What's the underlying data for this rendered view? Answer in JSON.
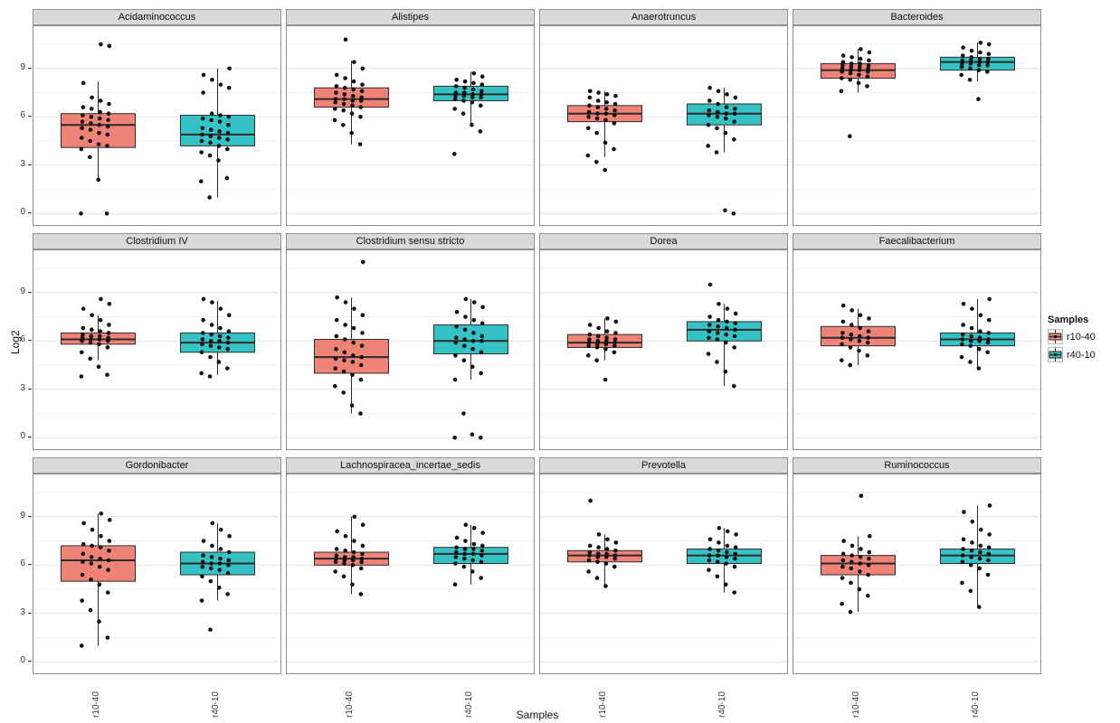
{
  "chart_data": {
    "type": "boxplot",
    "title": "",
    "ylabel": "Log2",
    "xlabel": "Samples",
    "y_ticks": [
      0,
      3,
      6,
      9
    ],
    "y_minor_ticks": [
      1.5,
      4.5,
      7.5,
      10.5
    ],
    "ylim": [
      -0.6,
      11.4
    ],
    "x_categories": [
      "r10-40",
      "r40-10"
    ],
    "legend": {
      "title": "Samples",
      "entries": [
        {
          "label": "r10-40",
          "color": "#F08377"
        },
        {
          "label": "r40-10",
          "color": "#35C2C5"
        }
      ]
    },
    "facets": [
      {
        "title": "Acidaminococcus",
        "groups": [
          {
            "label": "r10-40",
            "q1": 4.1,
            "median": 5.5,
            "q3": 6.2,
            "whisker_low": 2.0,
            "whisker_high": 8.2,
            "points": [
              0,
              0,
              2.1,
              3.5,
              4.0,
              4.2,
              4.3,
              4.5,
              4.7,
              4.9,
              5.0,
              5.2,
              5.3,
              5.4,
              5.5,
              5.6,
              5.7,
              5.8,
              5.9,
              6.0,
              6.1,
              6.2,
              6.3,
              6.5,
              6.6,
              6.8,
              7.0,
              7.2,
              8.1,
              10.4,
              10.5
            ]
          },
          {
            "label": "r40-10",
            "q1": 4.2,
            "median": 4.9,
            "q3": 6.1,
            "whisker_low": 1.0,
            "whisker_high": 9.0,
            "points": [
              1.0,
              2.0,
              2.2,
              3.3,
              3.6,
              3.8,
              4.0,
              4.2,
              4.4,
              4.5,
              4.6,
              4.7,
              4.8,
              4.9,
              5.0,
              5.1,
              5.2,
              5.3,
              5.5,
              5.7,
              5.8,
              5.9,
              6.0,
              6.1,
              6.2,
              7.5,
              7.8,
              8.0,
              8.3,
              8.6,
              9.0
            ]
          }
        ]
      },
      {
        "title": "Alistipes",
        "groups": [
          {
            "label": "r10-40",
            "q1": 6.6,
            "median": 7.1,
            "q3": 7.8,
            "whisker_low": 4.3,
            "whisker_high": 9.5,
            "points": [
              4.3,
              5.0,
              5.5,
              5.8,
              6.0,
              6.2,
              6.4,
              6.5,
              6.6,
              6.7,
              6.8,
              6.9,
              7.0,
              7.0,
              7.1,
              7.1,
              7.2,
              7.3,
              7.4,
              7.5,
              7.6,
              7.7,
              7.8,
              7.9,
              8.0,
              8.2,
              8.4,
              8.6,
              9.0,
              9.4,
              10.8
            ]
          },
          {
            "label": "r40-10",
            "q1": 7.0,
            "median": 7.4,
            "q3": 7.9,
            "whisker_low": 5.5,
            "whisker_high": 8.8,
            "points": [
              3.7,
              5.1,
              5.5,
              6.2,
              6.5,
              6.7,
              6.9,
              7.0,
              7.1,
              7.2,
              7.2,
              7.3,
              7.3,
              7.4,
              7.4,
              7.5,
              7.5,
              7.6,
              7.7,
              7.8,
              7.9,
              8.0,
              8.1,
              8.2,
              8.3,
              8.5,
              8.7
            ]
          }
        ]
      },
      {
        "title": "Anaerotruncus",
        "groups": [
          {
            "label": "r10-40",
            "q1": 5.7,
            "median": 6.2,
            "q3": 6.7,
            "whisker_low": 3.5,
            "whisker_high": 7.6,
            "points": [
              2.7,
              3.2,
              3.6,
              4.0,
              4.4,
              5.0,
              5.3,
              5.6,
              5.8,
              5.9,
              6.0,
              6.1,
              6.2,
              6.2,
              6.3,
              6.4,
              6.5,
              6.6,
              6.7,
              6.8,
              6.9,
              7.0,
              7.2,
              7.3,
              7.4,
              7.5,
              7.6
            ]
          },
          {
            "label": "r40-10",
            "q1": 5.5,
            "median": 6.2,
            "q3": 6.8,
            "whisker_low": 3.8,
            "whisker_high": 7.8,
            "points": [
              0,
              0.2,
              3.8,
              4.2,
              4.6,
              5.0,
              5.3,
              5.5,
              5.7,
              5.9,
              6.0,
              6.1,
              6.2,
              6.2,
              6.3,
              6.4,
              6.5,
              6.6,
              6.8,
              7.0,
              7.2,
              7.4,
              7.6,
              7.8
            ]
          }
        ]
      },
      {
        "title": "Bacteroides",
        "groups": [
          {
            "label": "r10-40",
            "q1": 8.4,
            "median": 8.9,
            "q3": 9.3,
            "whisker_low": 7.5,
            "whisker_high": 10.2,
            "points": [
              4.8,
              7.6,
              7.9,
              8.1,
              8.3,
              8.4,
              8.5,
              8.6,
              8.7,
              8.8,
              8.8,
              8.9,
              8.9,
              9.0,
              9.0,
              9.1,
              9.1,
              9.2,
              9.2,
              9.3,
              9.3,
              9.4,
              9.5,
              9.6,
              9.7,
              9.8,
              10.0,
              10.2
            ]
          },
          {
            "label": "r40-10",
            "q1": 8.9,
            "median": 9.4,
            "q3": 9.7,
            "whisker_low": 8.2,
            "whisker_high": 10.6,
            "points": [
              7.1,
              8.3,
              8.6,
              8.8,
              8.9,
              9.0,
              9.1,
              9.2,
              9.2,
              9.3,
              9.3,
              9.4,
              9.4,
              9.5,
              9.5,
              9.6,
              9.6,
              9.7,
              9.8,
              9.9,
              10.0,
              10.1,
              10.3,
              10.5,
              10.6
            ]
          }
        ]
      },
      {
        "title": "Clostridium IV",
        "groups": [
          {
            "label": "r10-40",
            "q1": 5.8,
            "median": 6.1,
            "q3": 6.5,
            "whisker_low": 4.8,
            "whisker_high": 7.6,
            "points": [
              3.8,
              3.9,
              4.4,
              4.9,
              5.3,
              5.6,
              5.8,
              5.9,
              6.0,
              6.0,
              6.1,
              6.1,
              6.2,
              6.2,
              6.3,
              6.3,
              6.4,
              6.5,
              6.6,
              6.7,
              6.8,
              7.0,
              7.3,
              7.6,
              8.0,
              8.3,
              8.6
            ]
          },
          {
            "label": "r40-10",
            "q1": 5.3,
            "median": 5.9,
            "q3": 6.5,
            "whisker_low": 3.9,
            "whisker_high": 8.5,
            "points": [
              3.8,
              4.0,
              4.3,
              4.7,
              5.0,
              5.3,
              5.5,
              5.6,
              5.7,
              5.8,
              5.9,
              6.0,
              6.0,
              6.1,
              6.2,
              6.3,
              6.4,
              6.5,
              6.6,
              6.8,
              7.0,
              7.3,
              7.6,
              8.0,
              8.4,
              8.6
            ]
          }
        ]
      },
      {
        "title": "Clostridium sensu stricto",
        "groups": [
          {
            "label": "r10-40",
            "q1": 4.0,
            "median": 5.0,
            "q3": 6.1,
            "whisker_low": 1.5,
            "whisker_high": 8.7,
            "points": [
              1.5,
              2.0,
              2.8,
              3.2,
              3.6,
              3.9,
              4.1,
              4.3,
              4.5,
              4.7,
              4.8,
              4.9,
              5.0,
              5.1,
              5.3,
              5.5,
              5.7,
              5.9,
              6.1,
              6.3,
              6.5,
              6.8,
              7.0,
              7.3,
              7.6,
              8.0,
              8.4,
              8.7,
              10.9
            ]
          },
          {
            "label": "r40-10",
            "q1": 5.2,
            "median": 6.0,
            "q3": 7.0,
            "whisker_low": 3.6,
            "whisker_high": 8.6,
            "points": [
              0,
              0,
              0.2,
              1.5,
              3.6,
              4.0,
              4.4,
              4.8,
              5.1,
              5.3,
              5.5,
              5.7,
              5.9,
              6.0,
              6.0,
              6.1,
              6.2,
              6.3,
              6.5,
              6.7,
              6.9,
              7.1,
              7.3,
              7.5,
              7.8,
              8.1,
              8.4,
              8.6
            ]
          }
        ]
      },
      {
        "title": "Dorea",
        "groups": [
          {
            "label": "r10-40",
            "q1": 5.6,
            "median": 5.9,
            "q3": 6.4,
            "whisker_low": 4.8,
            "whisker_high": 7.4,
            "points": [
              3.6,
              4.8,
              5.1,
              5.3,
              5.5,
              5.6,
              5.7,
              5.7,
              5.8,
              5.8,
              5.9,
              5.9,
              6.0,
              6.0,
              6.1,
              6.1,
              6.2,
              6.3,
              6.4,
              6.5,
              6.6,
              6.8,
              7.0,
              7.2,
              7.4
            ]
          },
          {
            "label": "r40-10",
            "q1": 6.0,
            "median": 6.7,
            "q3": 7.2,
            "whisker_low": 3.2,
            "whisker_high": 8.3,
            "points": [
              3.2,
              4.1,
              4.7,
              5.2,
              5.6,
              5.9,
              6.1,
              6.2,
              6.3,
              6.4,
              6.5,
              6.6,
              6.7,
              6.8,
              6.9,
              7.0,
              7.1,
              7.2,
              7.3,
              7.5,
              7.7,
              8.0,
              8.3,
              9.5
            ]
          }
        ]
      },
      {
        "title": "Faecalibacterium",
        "groups": [
          {
            "label": "r10-40",
            "q1": 5.7,
            "median": 6.2,
            "q3": 6.9,
            "whisker_low": 4.5,
            "whisker_high": 8.0,
            "points": [
              4.5,
              4.8,
              5.1,
              5.4,
              5.6,
              5.8,
              5.9,
              6.0,
              6.1,
              6.2,
              6.2,
              6.3,
              6.4,
              6.5,
              6.6,
              6.8,
              7.0,
              7.2,
              7.4,
              7.6,
              7.9,
              8.2
            ]
          },
          {
            "label": "r40-10",
            "q1": 5.7,
            "median": 6.1,
            "q3": 6.5,
            "whisker_low": 4.3,
            "whisker_high": 8.6,
            "points": [
              4.3,
              4.7,
              5.0,
              5.3,
              5.5,
              5.7,
              5.8,
              5.9,
              6.0,
              6.0,
              6.1,
              6.1,
              6.2,
              6.3,
              6.4,
              6.5,
              6.6,
              6.8,
              7.0,
              7.3,
              7.6,
              8.0,
              8.3,
              8.6
            ]
          }
        ]
      },
      {
        "title": "Gordonibacter",
        "groups": [
          {
            "label": "r10-40",
            "q1": 5.0,
            "median": 6.3,
            "q3": 7.2,
            "whisker_low": 1.0,
            "whisker_high": 9.2,
            "points": [
              1.0,
              1.5,
              2.5,
              3.2,
              3.8,
              4.3,
              4.8,
              5.1,
              5.4,
              5.7,
              5.9,
              6.1,
              6.2,
              6.3,
              6.4,
              6.5,
              6.7,
              6.9,
              7.1,
              7.2,
              7.3,
              7.5,
              7.8,
              8.2,
              8.6,
              8.8,
              9.2
            ]
          },
          {
            "label": "r40-10",
            "q1": 5.4,
            "median": 6.1,
            "q3": 6.8,
            "whisker_low": 3.8,
            "whisker_high": 8.6,
            "points": [
              2.0,
              3.8,
              4.2,
              4.6,
              5.0,
              5.3,
              5.5,
              5.7,
              5.8,
              5.9,
              6.0,
              6.1,
              6.1,
              6.2,
              6.3,
              6.4,
              6.5,
              6.6,
              6.8,
              7.0,
              7.2,
              7.5,
              7.8,
              8.2,
              8.6
            ]
          }
        ]
      },
      {
        "title": "Lachnospiracea_incertae_sedis",
        "groups": [
          {
            "label": "r10-40",
            "q1": 6.0,
            "median": 6.4,
            "q3": 6.8,
            "whisker_low": 4.2,
            "whisker_high": 9.0,
            "points": [
              4.2,
              4.8,
              5.3,
              5.6,
              5.8,
              6.0,
              6.1,
              6.2,
              6.2,
              6.3,
              6.3,
              6.4,
              6.4,
              6.5,
              6.5,
              6.6,
              6.7,
              6.8,
              6.9,
              7.0,
              7.2,
              7.5,
              7.8,
              8.1,
              8.5,
              9.0
            ]
          },
          {
            "label": "r40-10",
            "q1": 6.1,
            "median": 6.7,
            "q3": 7.1,
            "whisker_low": 4.8,
            "whisker_high": 8.5,
            "points": [
              4.8,
              5.2,
              5.6,
              5.9,
              6.1,
              6.2,
              6.3,
              6.4,
              6.5,
              6.6,
              6.7,
              6.7,
              6.8,
              6.9,
              7.0,
              7.0,
              7.1,
              7.2,
              7.3,
              7.5,
              7.7,
              8.0,
              8.3,
              8.5
            ]
          }
        ]
      },
      {
        "title": "Prevotella",
        "groups": [
          {
            "label": "r10-40",
            "q1": 6.2,
            "median": 6.6,
            "q3": 6.9,
            "whisker_low": 4.7,
            "whisker_high": 7.9,
            "points": [
              4.7,
              5.2,
              5.6,
              5.9,
              6.1,
              6.2,
              6.3,
              6.4,
              6.5,
              6.5,
              6.6,
              6.6,
              6.7,
              6.7,
              6.8,
              6.9,
              7.0,
              7.1,
              7.2,
              7.4,
              7.6,
              7.9,
              10.0
            ]
          },
          {
            "label": "r40-10",
            "q1": 6.1,
            "median": 6.6,
            "q3": 7.0,
            "whisker_low": 4.3,
            "whisker_high": 8.3,
            "points": [
              4.3,
              4.8,
              5.3,
              5.7,
              5.9,
              6.1,
              6.2,
              6.3,
              6.4,
              6.5,
              6.6,
              6.6,
              6.7,
              6.8,
              6.9,
              7.0,
              7.1,
              7.2,
              7.4,
              7.6,
              7.9,
              8.1,
              8.3
            ]
          }
        ]
      },
      {
        "title": "Ruminococcus",
        "groups": [
          {
            "label": "r10-40",
            "q1": 5.4,
            "median": 6.1,
            "q3": 6.6,
            "whisker_low": 3.1,
            "whisker_high": 7.8,
            "points": [
              3.1,
              3.6,
              4.1,
              4.5,
              4.9,
              5.2,
              5.4,
              5.6,
              5.8,
              5.9,
              6.0,
              6.1,
              6.2,
              6.3,
              6.4,
              6.5,
              6.6,
              6.7,
              6.8,
              7.0,
              7.2,
              7.5,
              7.8,
              10.3
            ]
          },
          {
            "label": "r40-10",
            "q1": 6.1,
            "median": 6.6,
            "q3": 7.0,
            "whisker_low": 3.4,
            "whisker_high": 9.7,
            "points": [
              3.4,
              4.4,
              4.9,
              5.4,
              5.8,
              6.0,
              6.2,
              6.3,
              6.4,
              6.5,
              6.6,
              6.7,
              6.8,
              6.9,
              7.0,
              7.1,
              7.2,
              7.4,
              7.6,
              7.9,
              8.2,
              8.7,
              9.3,
              9.7
            ]
          }
        ]
      }
    ],
    "style": {
      "strip_bg": "#d9d9d9",
      "panel_border": "#8c8c8c",
      "grid_major": "#e3e3e3",
      "grid_minor": "#f2f2f2",
      "box_stroke": "#2b2b2b",
      "point_color": "#111111"
    }
  }
}
